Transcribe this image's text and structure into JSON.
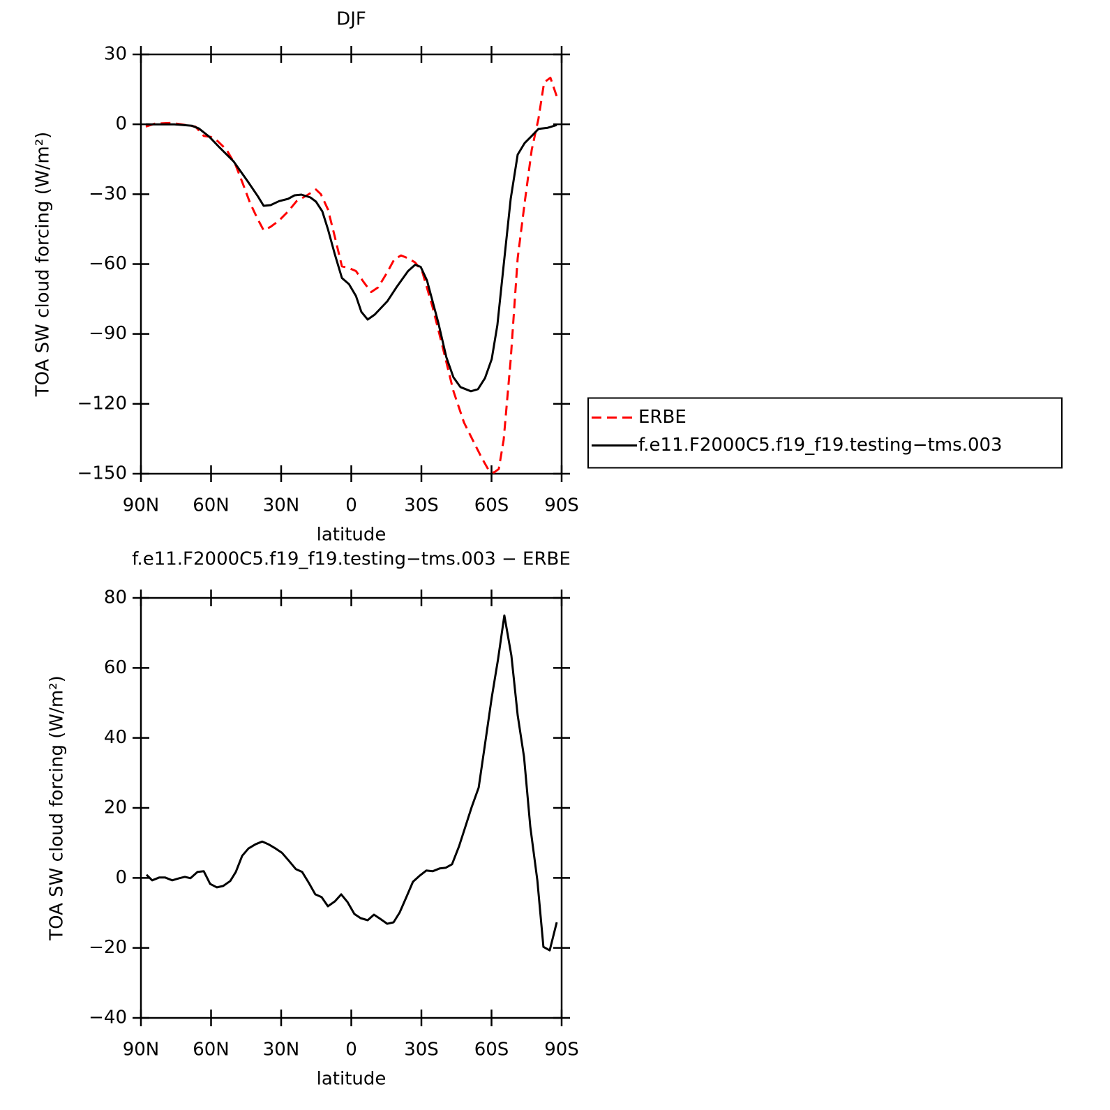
{
  "chart_data": [
    {
      "type": "line",
      "title": "DJF",
      "xlabel": "latitude",
      "ylabel": "TOA SW cloud forcing (W/m²)",
      "xlim": [
        90,
        -90
      ],
      "ylim": [
        -150,
        30
      ],
      "xticks": [
        {
          "value": 90,
          "label": "90N"
        },
        {
          "value": 60,
          "label": "60N"
        },
        {
          "value": 30,
          "label": "30N"
        },
        0,
        {
          "value": -30,
          "label": "30S"
        },
        {
          "value": -60,
          "label": "60S"
        },
        {
          "value": -90,
          "label": "90S"
        }
      ],
      "yticks": [
        {
          "value": -150,
          "label": "−150"
        },
        {
          "value": -120,
          "label": "−120"
        },
        {
          "value": -90,
          "label": "−90"
        },
        {
          "value": -60,
          "label": "−60"
        },
        {
          "value": -30,
          "label": "−30"
        },
        0,
        30
      ],
      "legend": "right",
      "series": [
        {
          "name": "ERBE",
          "color": "#ff0000",
          "dash": true,
          "x": [
            87.9,
            84,
            77.2,
            72.7,
            66.7,
            63.1,
            60.1,
            57.2,
            53.3,
            49.4,
            46.4,
            43.4,
            40.4,
            37.5,
            34.5,
            30.9,
            27,
            23.4,
            19,
            15.1,
            13,
            10,
            7,
            4,
            1,
            -2,
            -5.5,
            -8.5,
            -11.5,
            -15.4,
            -18.4,
            -21.3,
            -24.3,
            -27.3,
            -30.3,
            -34.8,
            -39.3,
            -43.7,
            -48.2,
            -52.7,
            -55.7,
            -58.7,
            -61,
            -63.1,
            -65.2,
            -68.2,
            -71.2,
            -74.2,
            -77.2,
            -80.1,
            -82.5,
            -85.2,
            -87.9
          ],
          "values": [
            -1,
            0.3,
            0.6,
            0,
            -1,
            -5,
            -5.4,
            -7.2,
            -11,
            -17.7,
            -25.5,
            -33.5,
            -40,
            -45.5,
            -44,
            -41.3,
            -37.4,
            -33,
            -30.5,
            -28,
            -30,
            -36.5,
            -48.5,
            -61,
            -61.7,
            -63,
            -68,
            -72,
            -70,
            -63.5,
            -58,
            -56.3,
            -57.5,
            -59.3,
            -63,
            -78.5,
            -96.5,
            -114.5,
            -128,
            -137,
            -143,
            -148.3,
            -149.5,
            -148,
            -135.5,
            -101,
            -57.5,
            -33.5,
            -11,
            2.4,
            18,
            20,
            12
          ]
        },
        {
          "name": "f.e11.F2000C5.f19_f19.testing−tms.003",
          "color": "#000000",
          "dash": false,
          "x": [
            87.9,
            75.7,
            68.2,
            65.2,
            60.7,
            56.3,
            50.3,
            44.3,
            39.9,
            37.5,
            34.5,
            30.9,
            27,
            24.3,
            21.3,
            17.5,
            15.1,
            12.4,
            10,
            7,
            4,
            1,
            -2,
            -4.3,
            -7,
            -10,
            -15.4,
            -19.3,
            -24.3,
            -27.3,
            -29.7,
            -32.4,
            -37.2,
            -40.7,
            -43.7,
            -46.7,
            -51.2,
            -54.2,
            -57.2,
            -60.1,
            -62.5,
            -65.2,
            -68.2,
            -71.2,
            -74.2,
            -77.2,
            -80.1,
            -84,
            -87.9
          ],
          "values": [
            0,
            0,
            -0.6,
            -1.8,
            -5.4,
            -10,
            -16,
            -24.5,
            -31,
            -35,
            -34.7,
            -33,
            -32,
            -30.5,
            -30.2,
            -31.4,
            -33.2,
            -37.4,
            -45,
            -56,
            -66,
            -68.6,
            -73.7,
            -80.5,
            -83.8,
            -81.7,
            -76,
            -70,
            -63,
            -60.3,
            -61.2,
            -67,
            -85,
            -100,
            -108.6,
            -112.8,
            -114.6,
            -113.7,
            -109,
            -100.8,
            -86.2,
            -60.5,
            -32,
            -13,
            -8,
            -5,
            -2,
            -1.5,
            -0.3
          ]
        }
      ]
    },
    {
      "type": "line",
      "title": "f.e11.F2000C5.f19_f19.testing−tms.003 − ERBE",
      "xlabel": "latitude",
      "ylabel": "TOA SW cloud forcing (W/m²)",
      "xlim": [
        90,
        -90
      ],
      "ylim": [
        -40,
        80
      ],
      "xticks": [
        {
          "value": 90,
          "label": "90N"
        },
        {
          "value": 60,
          "label": "60N"
        },
        {
          "value": 30,
          "label": "30N"
        },
        0,
        {
          "value": -30,
          "label": "30S"
        },
        {
          "value": -60,
          "label": "60S"
        },
        {
          "value": -90,
          "label": "90S"
        }
      ],
      "yticks": [
        {
          "value": -40,
          "label": "−40"
        },
        {
          "value": -20,
          "label": "−20"
        },
        0,
        20,
        40,
        60,
        80
      ],
      "series": [
        {
          "color": "#000000",
          "dash": false,
          "x": [
            87.6,
            85.2,
            82.2,
            79.6,
            76.6,
            73.6,
            71.2,
            68.8,
            65.8,
            63.1,
            60.4,
            57.5,
            54.8,
            51.8,
            49.4,
            46.7,
            44,
            41,
            38.1,
            35.4,
            32.4,
            29.7,
            26.7,
            23.7,
            21,
            18.1,
            15.4,
            12.7,
            10,
            7,
            4.3,
            1.6,
            -1.3,
            -4,
            -7,
            -9.7,
            -12.4,
            -15.4,
            -18.1,
            -20.7,
            -23.7,
            -26.4,
            -29.4,
            -32.1,
            -34.8,
            -37.8,
            -40.4,
            -43.1,
            -46.1,
            -48.8,
            -51.5,
            -54.5,
            -57.2,
            -60.1,
            -62.8,
            -65.5,
            -68.5,
            -71.2,
            -73.9,
            -76.6,
            -79.6,
            -82.2,
            -84.9,
            -87.9
          ],
          "values": [
            0.9,
            -0.7,
            0.1,
            0.1,
            -0.7,
            -0.1,
            0.3,
            -0.1,
            1.7,
            1.9,
            -1.7,
            -2.7,
            -2.3,
            -0.9,
            1.7,
            6.3,
            8.4,
            9.6,
            10.4,
            9.6,
            8.4,
            7.2,
            4.9,
            2.5,
            1.7,
            -1.5,
            -4.7,
            -5.5,
            -8.1,
            -6.7,
            -4.7,
            -6.9,
            -10.3,
            -11.5,
            -12.1,
            -10.5,
            -11.7,
            -13.1,
            -12.7,
            -9.9,
            -5.3,
            -1.1,
            0.7,
            2.1,
            1.9,
            2.7,
            2.9,
            3.9,
            9,
            14.6,
            20.2,
            25.8,
            38.1,
            51.5,
            62.5,
            75,
            63.5,
            46.5,
            34.6,
            14.6,
            -0.7,
            -19.7,
            -20.7,
            -12.7
          ]
        }
      ]
    }
  ]
}
